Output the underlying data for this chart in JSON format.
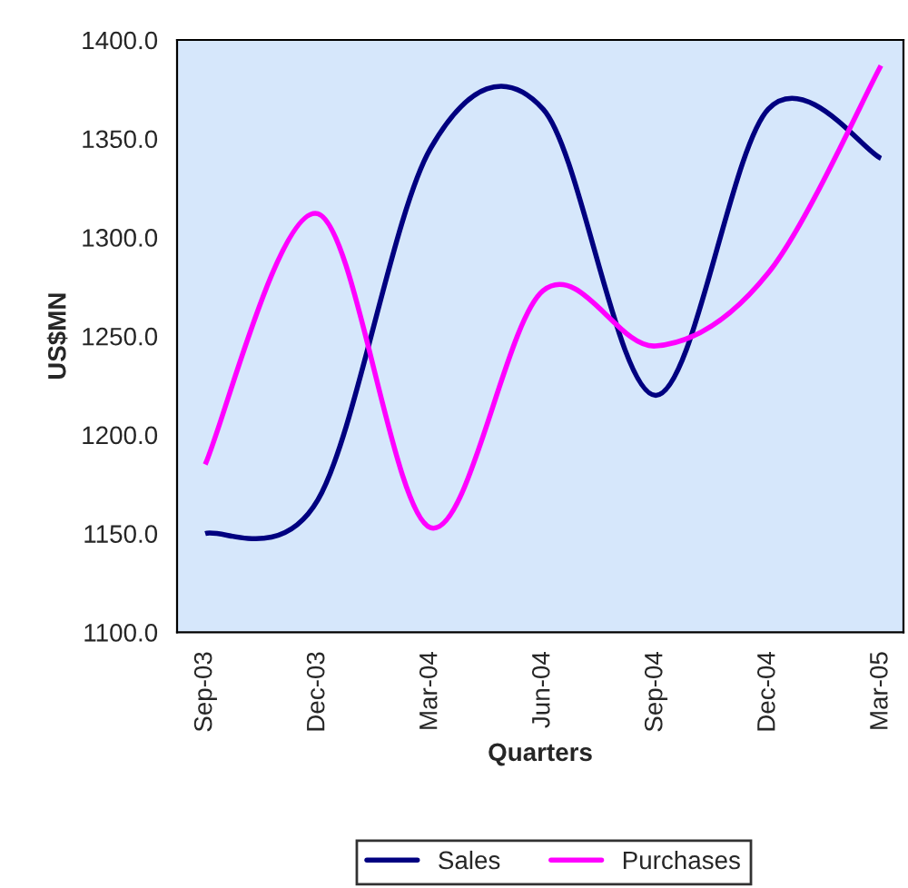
{
  "chart_data": {
    "type": "line",
    "xlabel": "Quarters",
    "ylabel": "US$MN",
    "categories": [
      "Sep-03",
      "Dec-03",
      "Mar-04",
      "Jun-04",
      "Sep-04",
      "Dec-04",
      "Mar-05"
    ],
    "series": [
      {
        "name": "Sales",
        "color": "#000080",
        "values": [
          1150,
          1167,
          1345,
          1365,
          1220,
          1365,
          1340
        ]
      },
      {
        "name": "Purchases",
        "color": "#ff00ff",
        "values": [
          1185,
          1312,
          1153,
          1273,
          1245,
          1282,
          1387
        ]
      }
    ],
    "ylim": [
      1100,
      1400
    ],
    "yticks": [
      {
        "value": 1100,
        "label": "1100.0"
      },
      {
        "value": 1150,
        "label": "1150.0"
      },
      {
        "value": 1200,
        "label": "1200.0"
      },
      {
        "value": 1250,
        "label": "1250.0"
      },
      {
        "value": 1300,
        "label": "1300.0"
      },
      {
        "value": 1350,
        "label": "1350.0"
      },
      {
        "value": 1400,
        "label": "1400.0"
      }
    ],
    "grid": false,
    "legend": "bottom",
    "marker": "none",
    "line_style": "solid"
  }
}
